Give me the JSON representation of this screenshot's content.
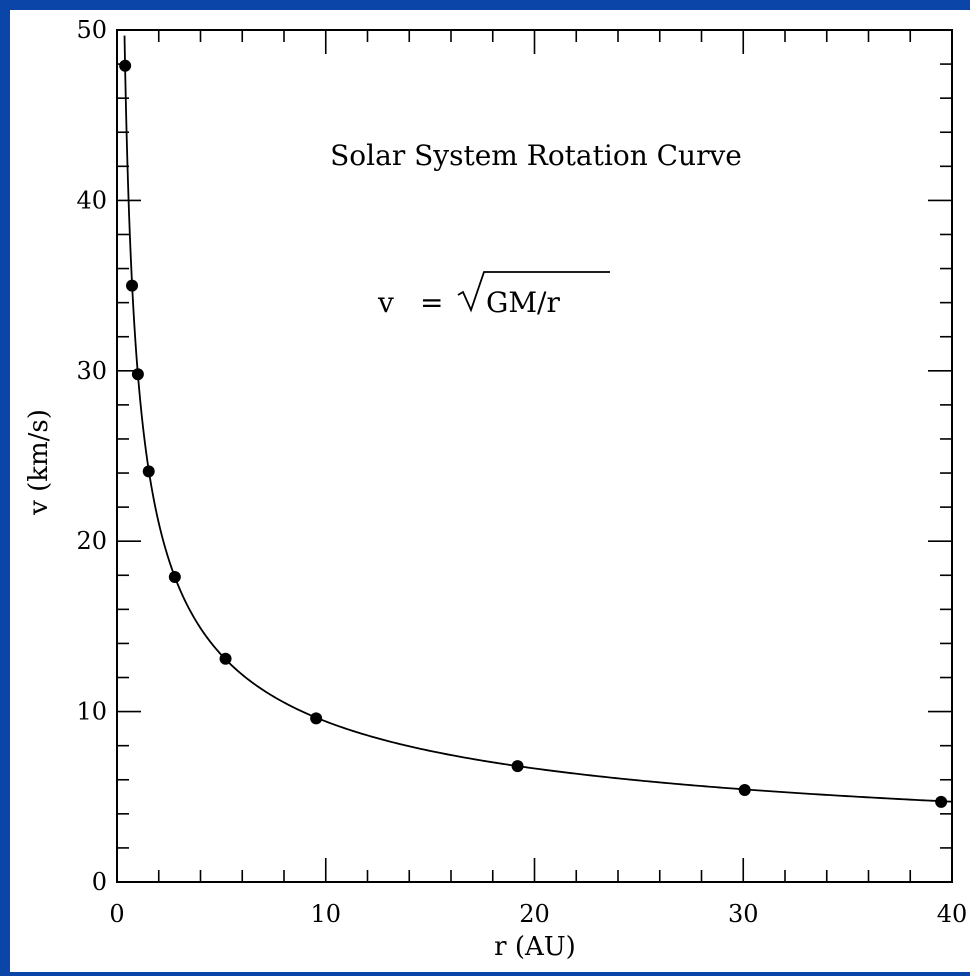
{
  "page": {
    "frame_color": "#0b45a8",
    "canvas_color": "#ffffff"
  },
  "chart_data": {
    "type": "scatter",
    "title": "Solar System Rotation Curve",
    "annotation": {
      "lhs": "v",
      "eq": "=",
      "radicand": "GM/r"
    },
    "xlabel": "r (AU)",
    "ylabel": "v (km/s)",
    "xlim": [
      0,
      40
    ],
    "ylim": [
      0,
      50
    ],
    "xticks": [
      0,
      10,
      20,
      30,
      40
    ],
    "yticks": [
      0,
      10,
      20,
      30,
      40,
      50
    ],
    "x_minor_step": 2,
    "y_minor_step": 2,
    "grid": false,
    "series": [
      {
        "points": [
          {
            "x": 0.39,
            "y": 47.9
          },
          {
            "x": 0.72,
            "y": 35.0
          },
          {
            "x": 1.0,
            "y": 29.8
          },
          {
            "x": 1.52,
            "y": 24.1
          },
          {
            "x": 2.77,
            "y": 17.9
          },
          {
            "x": 5.2,
            "y": 13.1
          },
          {
            "x": 9.54,
            "y": 9.6
          },
          {
            "x": 19.19,
            "y": 6.8
          },
          {
            "x": 30.07,
            "y": 5.4
          },
          {
            "x": 39.48,
            "y": 4.7
          }
        ]
      }
    ],
    "curve": {
      "formula": "v = 29.8 / sqrt(r)",
      "k": 29.8,
      "x_from": 0.36,
      "x_to": 40
    }
  }
}
